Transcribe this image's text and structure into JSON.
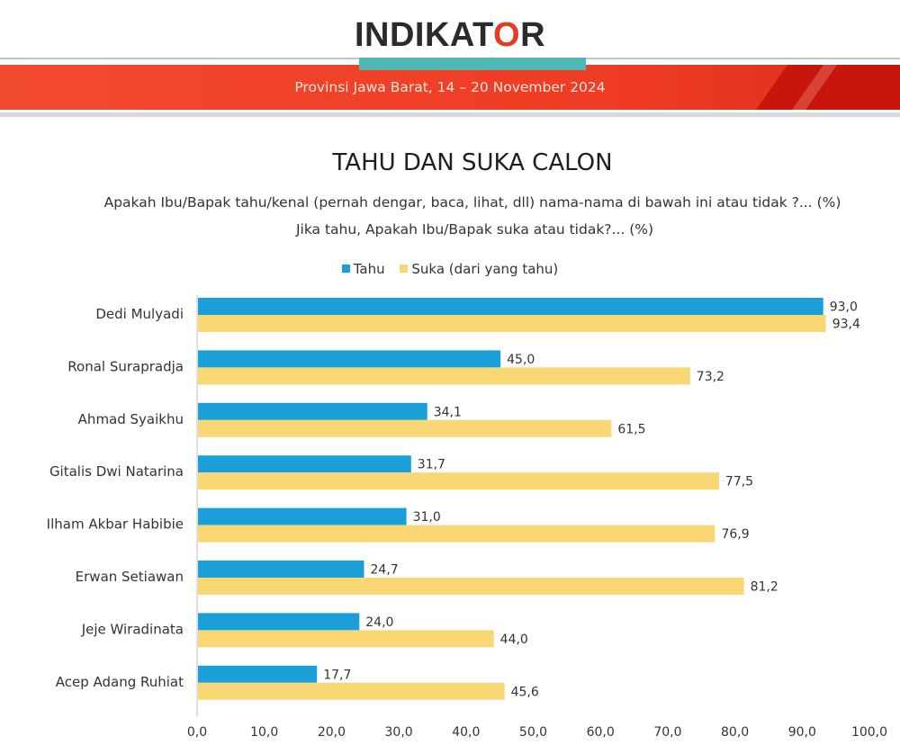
{
  "header": {
    "logo_text_a": "INDIKAT",
    "logo_text_b": "O",
    "logo_text_c": "R",
    "subtitle": "Provinsi Jawa Barat, 14 – 20 November 2024"
  },
  "colors": {
    "tahu": "#1a9fd8",
    "suka": "#f9d774",
    "band_red": "#ef3b23",
    "teal": "#4fb7b4"
  },
  "chart_data": {
    "type": "bar",
    "orientation": "horizontal",
    "title": "TAHU DAN SUKA CALON",
    "subtitle_lines": [
      "Apakah Ibu/Bapak tahu/kenal (pernah dengar, baca, lihat, dll) nama-nama di bawah ini atau tidak ?... (%)",
      "Jika tahu, Apakah Ibu/Bapak suka atau tidak?... (%)"
    ],
    "categories": [
      "Dedi Mulyadi",
      "Ronal Surapradja",
      "Ahmad Syaikhu",
      "Gitalis Dwi Natarina",
      "Ilham Akbar Habibie",
      "Erwan Setiawan",
      "Jeje Wiradinata",
      "Acep Adang Ruhiat"
    ],
    "series": [
      {
        "name": "Tahu",
        "color": "#1a9fd8",
        "values": [
          93.0,
          45.0,
          34.1,
          31.7,
          31.0,
          24.7,
          24.0,
          17.7
        ]
      },
      {
        "name": "Suka (dari yang tahu)",
        "color": "#f9d774",
        "values": [
          93.4,
          73.2,
          61.5,
          77.5,
          76.9,
          81.2,
          44.0,
          45.6
        ]
      }
    ],
    "xlim": [
      0,
      100
    ],
    "xticks": [
      "0,0",
      "10,0",
      "20,0",
      "30,0",
      "40,0",
      "50,0",
      "60,0",
      "70,0",
      "80,0",
      "90,0",
      "100,0"
    ],
    "grid": false,
    "legend": "top",
    "decimal_separator": ","
  }
}
